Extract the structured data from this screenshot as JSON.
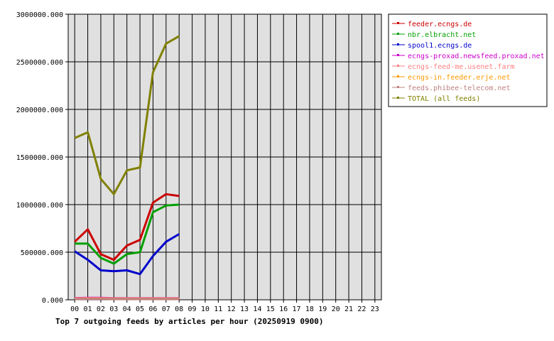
{
  "chart_data": {
    "type": "line",
    "title": "Top 7 outgoing feeds by articles per hour (20250919 0900)",
    "x_categories": [
      "00",
      "01",
      "02",
      "03",
      "04",
      "05",
      "06",
      "07",
      "08",
      "09",
      "10",
      "11",
      "12",
      "13",
      "14",
      "15",
      "16",
      "17",
      "18",
      "19",
      "20",
      "21",
      "22",
      "23"
    ],
    "y_tick_labels": [
      "0.000",
      "500000.000",
      "1000000.000",
      "1500000.000",
      "2000000.000",
      "2500000.000",
      "3000000.000"
    ],
    "y_ticks": [
      0,
      500000,
      1000000,
      1500000,
      2000000,
      2500000,
      3000000
    ],
    "ylim": [
      0,
      3000000
    ],
    "grid": true,
    "legend_position": "right",
    "series": [
      {
        "name": "feeder.ecngs.de",
        "color": "#cc0000",
        "values": [
          610000,
          740000,
          480000,
          420000,
          570000,
          630000,
          1020000,
          1110000,
          1090000
        ]
      },
      {
        "name": "nbr.elbracht.net",
        "color": "#00a000",
        "values": [
          590000,
          590000,
          440000,
          380000,
          480000,
          500000,
          920000,
          990000,
          1000000
        ]
      },
      {
        "name": "spool1.ecngs.de",
        "color": "#0000cc",
        "values": [
          510000,
          420000,
          310000,
          300000,
          310000,
          270000,
          460000,
          610000,
          690000
        ]
      },
      {
        "name": "ecngs-proxad.newsfeed.proxad.net",
        "color": "#cc00cc",
        "values": [
          18000,
          20000,
          20000,
          17000,
          17000,
          17000,
          17000,
          17000,
          17000
        ]
      },
      {
        "name": "ecngs-feed-me.usenet.farm",
        "color": "#ff8080",
        "values": [
          15000,
          17000,
          17000,
          15000,
          15000,
          15000,
          15000,
          15000,
          15000
        ]
      },
      {
        "name": "ecngs-in.feeder.erje.net",
        "color": "#ff9900",
        "values": [
          10000,
          11000,
          11000,
          10000,
          10000,
          10000,
          10000,
          10000,
          10000
        ]
      },
      {
        "name": "feeds.phibee-telecom.net",
        "color": "#c08080",
        "values": [
          8000,
          9000,
          9000,
          8000,
          8000,
          8000,
          8000,
          8000,
          8000
        ]
      },
      {
        "name": "TOTAL (all feeds)",
        "color": "#808000",
        "values": [
          1700000,
          1760000,
          1270000,
          1110000,
          1360000,
          1390000,
          2390000,
          2690000,
          2770000
        ]
      }
    ]
  }
}
